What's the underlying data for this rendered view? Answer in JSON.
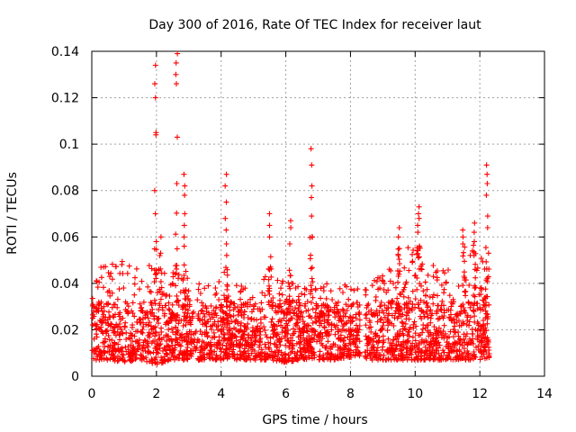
{
  "chart_data": {
    "type": "scatter",
    "title": "Day 300 of 2016, Rate Of TEC Index for receiver laut",
    "xlabel": "GPS time / hours",
    "ylabel": "ROTI / TECUs",
    "xlim": [
      0,
      14
    ],
    "ylim": [
      0,
      0.14
    ],
    "xticks": [
      0,
      2,
      4,
      6,
      8,
      10,
      12,
      14
    ],
    "xtick_labels": [
      "0",
      "2",
      "4",
      "6",
      "8",
      "10",
      "12",
      "14"
    ],
    "yticks": [
      0,
      0.02,
      0.04,
      0.06,
      0.08,
      0.1,
      0.12,
      0.14
    ],
    "ytick_labels": [
      "0",
      "0.02",
      "0.04",
      "0.06",
      "0.08",
      "0.1",
      "0.12",
      "0.14"
    ],
    "grid": true,
    "marker": "plus",
    "color": "#ff0000",
    "series": [
      {
        "name": "ROTI",
        "band_profile": {
          "x": [
            0.0,
            0.5,
            1.0,
            1.5,
            2.0,
            2.5,
            3.0,
            3.5,
            4.0,
            4.5,
            5.0,
            5.5,
            6.0,
            6.5,
            7.0,
            7.5,
            8.0,
            8.25,
            8.5,
            9.0,
            9.5,
            10.0,
            10.5,
            11.0,
            11.5,
            12.0,
            12.3
          ],
          "upper": [
            0.043,
            0.05,
            0.055,
            0.045,
            0.05,
            0.045,
            0.043,
            0.04,
            0.047,
            0.04,
            0.04,
            0.045,
            0.042,
            0.04,
            0.043,
            0.04,
            0.04,
            0.039,
            0.039,
            0.045,
            0.05,
            0.062,
            0.052,
            0.047,
            0.052,
            0.057,
            0.06
          ],
          "lower": [
            0.007,
            0.007,
            0.006,
            0.007,
            0.005,
            0.007,
            0.007,
            0.007,
            0.007,
            0.007,
            0.007,
            0.007,
            0.006,
            0.007,
            0.007,
            0.007,
            0.008,
            0.009,
            0.007,
            0.007,
            0.007,
            0.007,
            0.007,
            0.007,
            0.007,
            0.007,
            0.008
          ]
        },
        "gap": [
          8.3,
          8.45
        ],
        "x_range": [
          0.0,
          12.3
        ],
        "spikes": [
          {
            "x": 1.97,
            "y": [
              0.134,
              0.126,
              0.12,
              0.105,
              0.104,
              0.08,
              0.07,
              0.058
            ]
          },
          {
            "x": 2.12,
            "y": [
              0.06,
              0.053
            ]
          },
          {
            "x": 2.62,
            "y": [
              0.139,
              0.135,
              0.13,
              0.126,
              0.103,
              0.083
            ]
          },
          {
            "x": 2.88,
            "y": [
              0.087,
              0.082,
              0.078,
              0.07,
              0.065,
              0.06,
              0.056
            ]
          },
          {
            "x": 4.15,
            "y": [
              0.087,
              0.082,
              0.075,
              0.068,
              0.063,
              0.057
            ]
          },
          {
            "x": 5.5,
            "y": [
              0.07,
              0.065,
              0.06
            ]
          },
          {
            "x": 6.15,
            "y": [
              0.067,
              0.064,
              0.057
            ]
          },
          {
            "x": 6.78,
            "y": [
              0.098,
              0.091,
              0.082,
              0.077,
              0.069,
              0.06
            ]
          },
          {
            "x": 9.5,
            "y": [
              0.064,
              0.06,
              0.055
            ]
          },
          {
            "x": 10.1,
            "y": [
              0.073,
              0.07,
              0.068,
              0.065,
              0.062
            ]
          },
          {
            "x": 11.5,
            "y": [
              0.063,
              0.06,
              0.057
            ]
          },
          {
            "x": 11.85,
            "y": [
              0.066,
              0.062,
              0.058
            ]
          },
          {
            "x": 12.22,
            "y": [
              0.091,
              0.087,
              0.083,
              0.078,
              0.069,
              0.064
            ]
          }
        ]
      }
    ]
  }
}
